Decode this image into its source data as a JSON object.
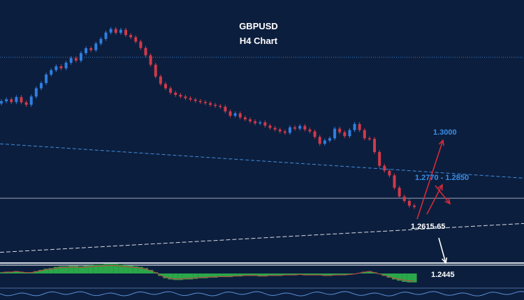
{
  "chart_data": {
    "type": "candlestick",
    "symbol": "GBPUSD",
    "timeframe": "H4 Chart",
    "colors": {
      "background": "#0c1e3d",
      "bull": "#2f7fe0",
      "bear": "#d03a4a",
      "target": "#3a8ee8",
      "arrow_up": "#d22b3a",
      "arrow_down": "#ffffff",
      "osc_fill": "#2aa84a",
      "osc_line": "#c84040"
    },
    "ylim": [
      1.238,
      1.334
    ],
    "series_closes": [
      1.3035,
      1.3042,
      1.3032,
      1.305,
      1.3031,
      1.3022,
      1.3052,
      1.3082,
      1.3101,
      1.3132,
      1.3148,
      1.3162,
      1.3155,
      1.3175,
      1.3192,
      1.3183,
      1.321,
      1.3228,
      1.3221,
      1.3245,
      1.3262,
      1.3285,
      1.3298,
      1.3284,
      1.3295,
      1.3276,
      1.3268,
      1.3252,
      1.3229,
      1.3202,
      1.3168,
      1.3125,
      1.3098,
      1.3082,
      1.3066,
      1.3058,
      1.3052,
      1.3046,
      1.3041,
      1.3036,
      1.3032,
      1.3028,
      1.3022,
      1.3018,
      1.3015,
      1.2998,
      1.2982,
      1.2991,
      1.2976,
      1.2969,
      1.2962,
      1.2955,
      1.2958,
      1.2946,
      1.2938,
      1.2932,
      1.2925,
      1.292,
      1.294,
      1.2935,
      1.2945,
      1.2932,
      1.2925,
      1.2905,
      1.288,
      1.2892,
      1.29,
      1.2935,
      1.2922,
      1.2908,
      1.293,
      1.2952,
      1.293,
      1.29,
      1.2898,
      1.285,
      1.28,
      1.2782,
      1.2765,
      1.272,
      1.2688,
      1.2672,
      1.2655,
      1.265
    ],
    "levels": {
      "upper_dotted": 1.3195,
      "horizontal": 1.2682,
      "lower_bold": 1.2446,
      "upper_trend": [
        1.288,
        1.2755
      ],
      "lower_trend": [
        1.2485,
        1.259
      ]
    },
    "annotations": {
      "target_1": "1.3000",
      "target_2": "1.2770 - 1.2850",
      "support": "1.2615-65",
      "bearish_target": "1.2445"
    },
    "oscillator_histogram": [
      2,
      3,
      3,
      4,
      3,
      2,
      2,
      4,
      6,
      8,
      9,
      11,
      12,
      12,
      13,
      13,
      12,
      13,
      14,
      15,
      15,
      16,
      16,
      16,
      15,
      14,
      13,
      12,
      11,
      9,
      6,
      2,
      -4,
      -8,
      -10,
      -11,
      -11,
      -10,
      -10,
      -9,
      -8,
      -8,
      -7,
      -7,
      -6,
      -6,
      -6,
      -5,
      -5,
      -4,
      -4,
      -4,
      -5,
      -5,
      -4,
      -4,
      -4,
      -3,
      -3,
      -3,
      -2,
      -3,
      -3,
      -3,
      -3,
      -4,
      -4,
      -3,
      -3,
      -3,
      -2,
      -1,
      1,
      3,
      4,
      2,
      -1,
      -4,
      -7,
      -10,
      -12,
      -14,
      -15,
      -15
    ]
  }
}
